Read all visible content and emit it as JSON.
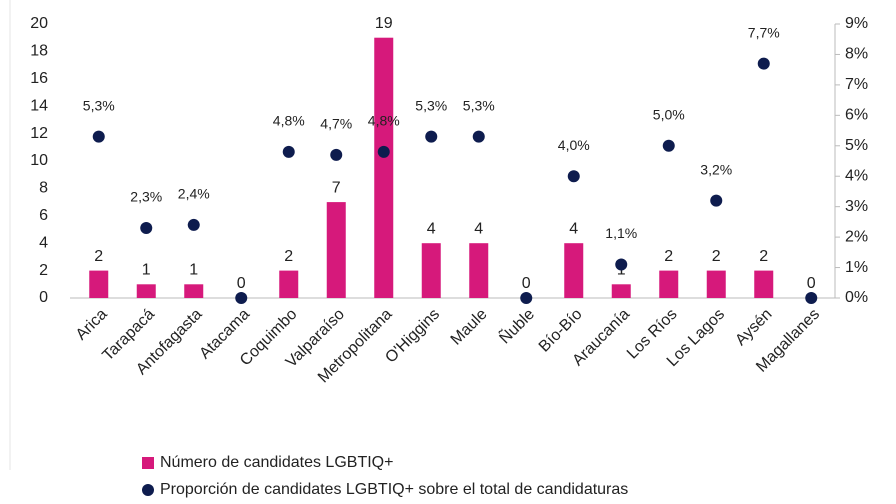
{
  "chart_data": {
    "type": "bar",
    "categories": [
      "Arica",
      "Tarapacá",
      "Antofagasta",
      "Atacama",
      "Coquimbo",
      "Valparaíso",
      "Metropolitana",
      "O'Higgins",
      "Maule",
      "Ñuble",
      "Bío-Bío",
      "Araucanía",
      "Los Ríos",
      "Los Lagos",
      "Aysén",
      "Magallanes"
    ],
    "series": [
      {
        "name": "Número de candidates LGBTIQ+",
        "type": "bar",
        "color": "#d6197b",
        "values": [
          2,
          1,
          1,
          0,
          2,
          7,
          19,
          4,
          4,
          0,
          4,
          1,
          2,
          2,
          2,
          0
        ]
      },
      {
        "name": "Proporción de candidates LGBTIQ+ sobre el total de candidaturas",
        "type": "scatter",
        "axis": "y2",
        "color": "#0e1c4e",
        "values": [
          5.3,
          2.3,
          2.4,
          0,
          4.8,
          4.7,
          4.8,
          5.3,
          5.3,
          0,
          4.0,
          1.1,
          5.0,
          3.2,
          7.7,
          0
        ],
        "value_labels": [
          "5,3%",
          "2,3%",
          "2,4%",
          null,
          "4,8%",
          "4,7%",
          "4,8%",
          "5,3%",
          "5,3%",
          null,
          "4,0%",
          "1,1%",
          "5,0%",
          "3,2%",
          "7,7%",
          null
        ]
      }
    ],
    "ylim": [
      0,
      20
    ],
    "yticks": [
      0,
      2,
      4,
      6,
      8,
      10,
      12,
      14,
      16,
      18,
      20
    ],
    "y2lim": [
      0,
      9
    ],
    "y2ticks": [
      {
        "value": 0,
        "label": "0%"
      },
      {
        "value": 1,
        "label": "1%"
      },
      {
        "value": 2,
        "label": "2%"
      },
      {
        "value": 3,
        "label": "3%"
      },
      {
        "value": 4,
        "label": "4%"
      },
      {
        "value": 5,
        "label": "5%"
      },
      {
        "value": 6,
        "label": "6%"
      },
      {
        "value": 7,
        "label": "7%"
      },
      {
        "value": 8,
        "label": "8%"
      },
      {
        "value": 9,
        "label": "9%"
      }
    ],
    "legend": "bottom"
  }
}
